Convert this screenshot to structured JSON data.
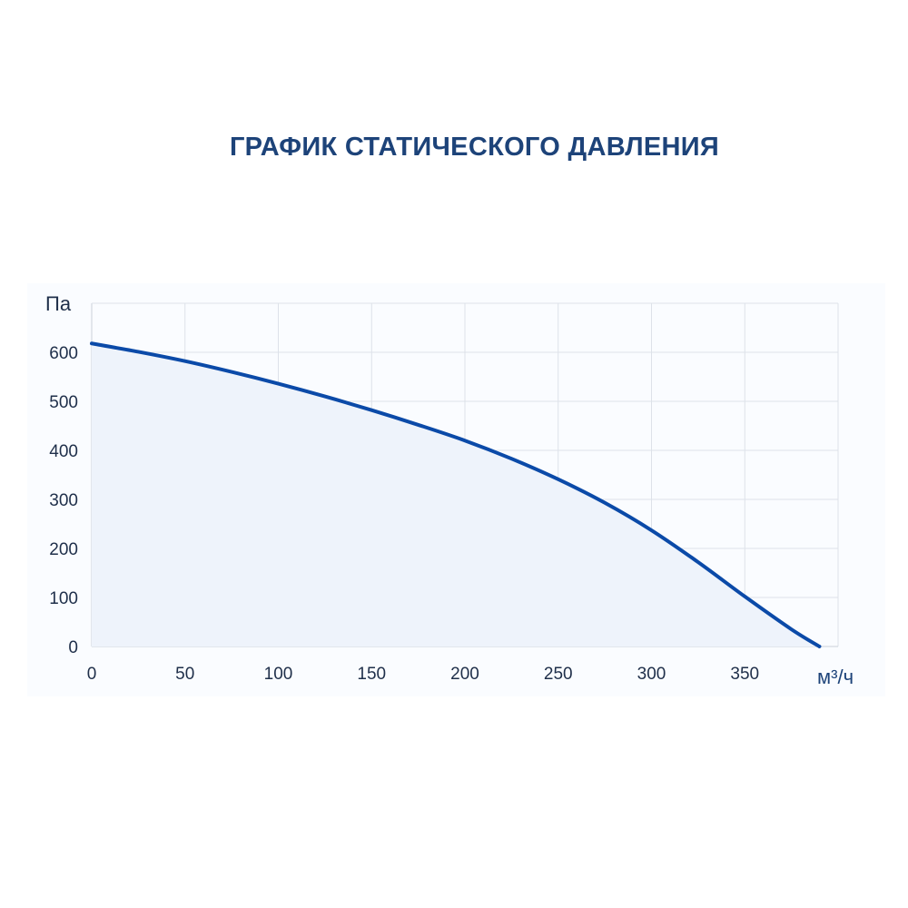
{
  "chart_data": {
    "type": "line",
    "title": "ГРАФИК СТАТИЧЕСКОГО ДАВЛЕНИЯ",
    "xlabel": "м³/ч",
    "ylabel": "Па",
    "xlim": [
      0,
      400
    ],
    "ylim": [
      0,
      700
    ],
    "x_ticks": [
      0,
      50,
      100,
      150,
      200,
      250,
      300,
      350
    ],
    "y_ticks": [
      0,
      100,
      200,
      300,
      400,
      500,
      600
    ],
    "grid": true,
    "series": [
      {
        "x": [
          0,
          25,
          50,
          75,
          100,
          125,
          150,
          175,
          200,
          225,
          250,
          275,
          300,
          325,
          350,
          375,
          390
        ],
        "y": [
          618,
          601,
          582,
          560,
          536,
          510,
          482,
          452,
          420,
          383,
          341,
          293,
          237,
          172,
          102,
          35,
          0
        ],
        "line_color": "#0b4aa8",
        "fill_color": "#eef3fb"
      }
    ]
  }
}
